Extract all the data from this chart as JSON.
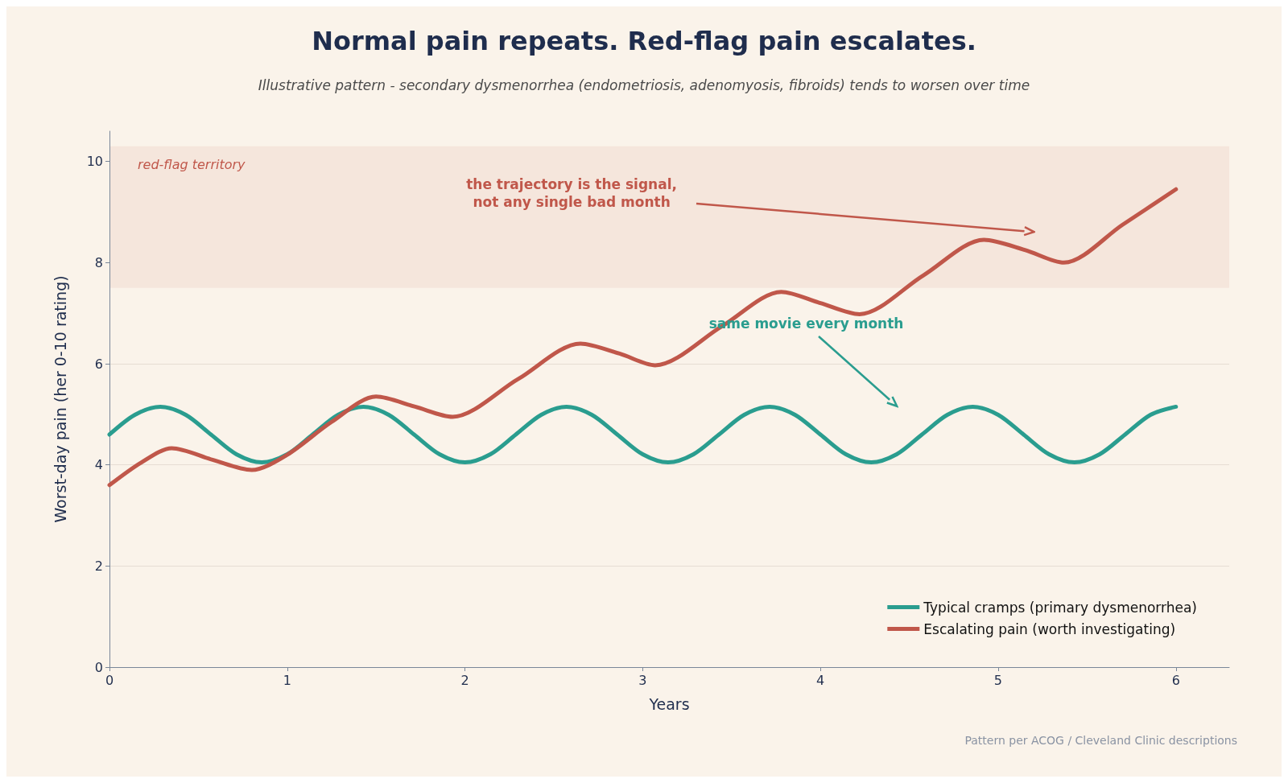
{
  "chart_data": {
    "type": "line",
    "title": "Normal pain repeats. Red-flag pain escalates.",
    "subtitle": "Illustrative pattern - secondary dysmenorrhea (endometriosis, adenomyosis, fibroids) tends to worsen over time",
    "xlabel": "Years",
    "ylabel": "Worst-day pain (her 0-10 rating)",
    "xlim": [
      0,
      6.3
    ],
    "xticks": [
      0,
      1,
      2,
      3,
      4,
      5,
      6
    ],
    "ylim": [
      0,
      10.6
    ],
    "yticks": [
      0,
      2,
      4,
      6,
      8,
      10
    ],
    "grid": "y",
    "legend": "bottom right",
    "marker": "none",
    "line_style": "solid",
    "bands": [
      {
        "axis": "y",
        "from": 7.5,
        "to": 10.3,
        "label": "red-flag territory",
        "color": "#f5e6dc"
      }
    ],
    "annotations": [
      "the trajectory is the signal,\nnot any single bad month",
      "same movie every month",
      "Pattern per ACOG / Cleveland Clinic descriptions"
    ],
    "series": [
      {
        "name": "Typical cramps (primary dysmenorrhea)",
        "color": "#2a9d8f",
        "x": [
          0,
          0.143,
          0.286,
          0.429,
          0.571,
          0.714,
          0.857,
          1,
          1.143,
          1.286,
          1.429,
          1.571,
          1.714,
          1.857,
          2,
          2.143,
          2.286,
          2.429,
          2.571,
          2.714,
          2.857,
          3,
          3.143,
          3.286,
          3.429,
          3.571,
          3.714,
          3.857,
          4,
          4.143,
          4.286,
          4.429,
          4.571,
          4.714,
          4.857,
          5,
          5.143,
          5.286,
          5.429,
          5.571,
          5.714,
          5.857,
          6
        ],
        "values": [
          4.6,
          4.99,
          5.15,
          4.99,
          4.6,
          4.21,
          4.05,
          4.21,
          4.6,
          4.99,
          5.15,
          4.99,
          4.6,
          4.21,
          4.05,
          4.21,
          4.6,
          4.99,
          5.15,
          4.99,
          4.6,
          4.21,
          4.05,
          4.21,
          4.6,
          4.99,
          5.15,
          4.99,
          4.6,
          4.21,
          4.05,
          4.21,
          4.6,
          4.99,
          5.15,
          4.99,
          4.6,
          4.21,
          4.05,
          4.21,
          4.6,
          4.99,
          5.15
        ]
      },
      {
        "name": "Escalating pain (worth investigating)",
        "color": "#c0574a",
        "x": [
          0,
          0.18,
          0.35,
          0.58,
          0.8,
          1,
          1.25,
          1.5,
          1.72,
          1.93,
          2.3,
          2.65,
          2.87,
          3.07,
          3.45,
          3.78,
          4,
          4.22,
          4.58,
          4.92,
          5.15,
          5.37,
          5.7,
          6
        ],
        "values": [
          3.6,
          4.05,
          4.33,
          4.1,
          3.9,
          4.2,
          4.85,
          5.35,
          5.15,
          4.95,
          5.7,
          6.4,
          6.2,
          5.97,
          6.75,
          7.42,
          7.2,
          6.98,
          7.75,
          8.45,
          8.25,
          8,
          8.75,
          9.45
        ]
      }
    ]
  }
}
